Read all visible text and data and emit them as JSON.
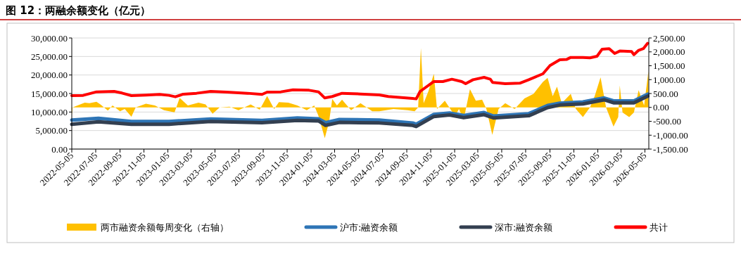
{
  "chart_data": {
    "type": "line",
    "title": "图 12：两融余额变化（亿元）",
    "xlim": [
      "2022-05-05",
      "2026-05-15"
    ],
    "xticks": [
      "2022-05-05",
      "2022-07-05",
      "2022-09-05",
      "2022-11-05",
      "2023-01-05",
      "2023-03-05",
      "2023-05-05",
      "2023-07-05",
      "2023-09-05",
      "2023-11-05",
      "2024-01-05",
      "2024-03-05",
      "2024-05-05",
      "2024-07-05",
      "2024-09-05",
      "2024-11-05",
      "2025-01-05",
      "2025-03-05",
      "2025-05-05",
      "2025-07-05",
      "2025-09-05",
      "2025-11-05",
      "2026-01-05",
      "2026-03-05",
      "2026-05-05"
    ],
    "ylim": [
      0,
      30000
    ],
    "yticks": [
      {
        "value": 0,
        "label": "0.00"
      },
      {
        "value": 5000,
        "label": "5,000.00"
      },
      {
        "value": 10000,
        "label": "10,000.00"
      },
      {
        "value": 15000,
        "label": "15,000.00"
      },
      {
        "value": 20000,
        "label": "20,000.00"
      },
      {
        "value": 25000,
        "label": "25,000.00"
      },
      {
        "value": 30000,
        "label": "30,000.00"
      }
    ],
    "y2lim": [
      -1500,
      2500
    ],
    "y2ticks": [
      {
        "value": -1500,
        "label": "-1,500.00"
      },
      {
        "value": -1000,
        "label": "-1,000.00"
      },
      {
        "value": -500,
        "label": "-500.00"
      },
      {
        "value": 0,
        "label": "0.00"
      },
      {
        "value": 500,
        "label": "500.00"
      },
      {
        "value": 1000,
        "label": "1,000.00"
      },
      {
        "value": 1500,
        "label": "1,500.00"
      },
      {
        "value": 2000,
        "label": "2,000.00"
      },
      {
        "value": 2500,
        "label": "2,500.00"
      }
    ],
    "grid": "y",
    "legend": "bottom",
    "series": [
      {
        "name": "两市融资余额每周变化（右轴）",
        "type": "area",
        "axis": "y2",
        "color": "#ffc000",
        "x": [
          "2022-05-05",
          "2022-05-07",
          "2022-06-07",
          "2022-06-19",
          "2022-07-07",
          "2022-07-17",
          "2022-08-05",
          "2022-08-17",
          "2022-09-05",
          "2022-09-17",
          "2022-10-04",
          "2022-10-15",
          "2022-11-10",
          "2022-12-03",
          "2022-12-26",
          "2023-01-22",
          "2023-02-04",
          "2023-02-25",
          "2023-03-24",
          "2023-04-11",
          "2023-04-29",
          "2023-05-17",
          "2023-06-11",
          "2023-07-04",
          "2023-08-04",
          "2023-08-27",
          "2023-09-15",
          "2023-10-03",
          "2023-10-15",
          "2023-11-08",
          "2023-12-01",
          "2023-12-25",
          "2024-01-13",
          "2024-01-24",
          "2024-02-09",
          "2024-02-20",
          "2024-02-28",
          "2024-03-11",
          "2024-03-24",
          "2024-04-16",
          "2024-05-10",
          "2024-06-09",
          "2024-06-27",
          "2024-08-02",
          "2024-09-07",
          "2024-09-25",
          "2024-10-04",
          "2024-10-11",
          "2024-10-18",
          "2024-10-30",
          "2024-11-13",
          "2024-11-21",
          "2024-12-11",
          "2025-01-06",
          "2025-01-16",
          "2025-01-28",
          "2025-02-13",
          "2025-02-28",
          "2025-03-16",
          "2025-03-27",
          "2025-04-11",
          "2025-04-27",
          "2025-05-14",
          "2025-06-07",
          "2025-07-02",
          "2025-07-25",
          "2025-08-18",
          "2025-08-30",
          "2025-09-12",
          "2025-09-23",
          "2025-10-05",
          "2025-10-28",
          "2025-11-10",
          "2025-11-28",
          "2025-12-16",
          "2025-12-28",
          "2026-01-12",
          "2026-01-26",
          "2026-02-14",
          "2026-02-26",
          "2026-03-02",
          "2026-03-09",
          "2026-03-26",
          "2026-04-07",
          "2026-04-19",
          "2026-05-03",
          "2026-05-14"
        ],
        "values": [
          -266,
          0,
          172,
          150,
          205,
          110,
          -115,
          70,
          -140,
          -60,
          -335,
          0,
          135,
          70,
          -100,
          -180,
          340,
          70,
          170,
          110,
          -225,
          0,
          25,
          -100,
          110,
          -80,
          410,
          -60,
          190,
          170,
          70,
          -100,
          70,
          -310,
          -1110,
          -520,
          305,
          70,
          280,
          -100,
          150,
          -140,
          -140,
          -60,
          -100,
          -140,
          0,
          2140,
          150,
          577,
          1210,
          -60,
          240,
          -310,
          -60,
          -440,
          660,
          240,
          280,
          -60,
          -985,
          -60,
          150,
          -60,
          320,
          490,
          915,
          1065,
          405,
          745,
          150,
          490,
          -60,
          -350,
          0,
          405,
          1080,
          0,
          -690,
          -350,
          790,
          -185,
          -350,
          -185,
          620,
          70,
          1295
        ]
      },
      {
        "name": "沪市:融资余额",
        "color": "#2e75b6",
        "x": [
          "2022-05-05",
          "2022-07-12",
          "2022-10-04",
          "2023-01-08",
          "2023-04-24",
          "2023-09-02",
          "2023-12-01",
          "2024-01-24",
          "2024-02-11",
          "2024-03-17",
          "2024-06-27",
          "2024-09-20",
          "2024-09-29",
          "2024-11-13",
          "2024-12-23",
          "2025-01-28",
          "2025-03-21",
          "2025-04-14",
          "2025-07-13",
          "2025-08-30",
          "2025-09-30",
          "2025-11-28",
          "2026-01-21",
          "2026-02-14",
          "2026-04-07",
          "2026-05-12"
        ],
        "values": [
          7850,
          8290,
          7470,
          7470,
          8100,
          7720,
          8420,
          8160,
          7150,
          7980,
          7850,
          7030,
          6710,
          9370,
          9750,
          9060,
          9880,
          8930,
          9560,
          11780,
          12410,
          12730,
          13800,
          13030,
          13030,
          14820
        ]
      },
      {
        "name": "深市:融资余额",
        "color": "#333f50",
        "x": [
          "2022-05-05",
          "2022-07-12",
          "2022-10-04",
          "2023-01-08",
          "2023-04-24",
          "2023-09-02",
          "2023-12-01",
          "2024-01-24",
          "2024-02-11",
          "2024-03-17",
          "2024-06-27",
          "2024-09-20",
          "2024-09-29",
          "2024-11-13",
          "2024-12-23",
          "2025-01-28",
          "2025-03-21",
          "2025-04-14",
          "2025-07-13",
          "2025-08-30",
          "2025-09-30",
          "2025-11-28",
          "2026-01-21",
          "2026-02-14",
          "2026-04-07",
          "2026-05-12"
        ],
        "values": [
          6710,
          7340,
          6710,
          6710,
          7470,
          7100,
          7720,
          7600,
          6400,
          7200,
          7050,
          6400,
          6100,
          8800,
          9200,
          8500,
          9300,
          8400,
          9000,
          11200,
          11900,
          12200,
          13300,
          12500,
          12500,
          14300
        ]
      },
      {
        "name": "共计",
        "color": "#ff0000",
        "x": [
          "2022-05-05",
          "2022-06-03",
          "2022-07-07",
          "2022-08-21",
          "2022-09-10",
          "2022-10-04",
          "2022-11-10",
          "2022-12-15",
          "2023-01-08",
          "2023-01-24",
          "2023-02-13",
          "2023-03-19",
          "2023-04-24",
          "2023-06-04",
          "2023-07-27",
          "2023-09-02",
          "2023-09-15",
          "2023-10-20",
          "2023-11-20",
          "2023-12-31",
          "2024-01-24",
          "2024-02-09",
          "2024-02-28",
          "2024-03-24",
          "2024-05-10",
          "2024-06-27",
          "2024-07-20",
          "2024-09-20",
          "2024-09-29",
          "2024-10-09",
          "2024-11-13",
          "2024-12-06",
          "2024-12-29",
          "2025-01-23",
          "2025-02-02",
          "2025-02-21",
          "2025-03-21",
          "2025-04-06",
          "2025-04-12",
          "2025-05-14",
          "2025-06-20",
          "2025-07-13",
          "2025-08-18",
          "2025-09-05",
          "2025-09-30",
          "2025-10-18",
          "2025-10-28",
          "2025-11-28",
          "2025-12-16",
          "2026-01-03",
          "2026-01-16",
          "2026-02-03",
          "2026-02-17",
          "2026-03-02",
          "2026-04-01",
          "2026-04-07",
          "2026-04-19",
          "2026-05-01",
          "2026-05-12"
        ],
        "values": [
          14440,
          14500,
          15450,
          15570,
          15130,
          14440,
          14570,
          14760,
          14500,
          14120,
          14820,
          15070,
          15570,
          15380,
          15070,
          14760,
          15380,
          15450,
          16010,
          15880,
          15450,
          13800,
          14190,
          15070,
          14880,
          14630,
          14190,
          13670,
          13550,
          15570,
          18230,
          18230,
          18860,
          18230,
          17660,
          18730,
          19370,
          18860,
          17980,
          17660,
          17790,
          18730,
          20320,
          22540,
          24120,
          24230,
          24750,
          24750,
          24630,
          25070,
          26980,
          27110,
          25830,
          26470,
          26330,
          25510,
          26660,
          27110,
          28560
        ]
      }
    ]
  }
}
